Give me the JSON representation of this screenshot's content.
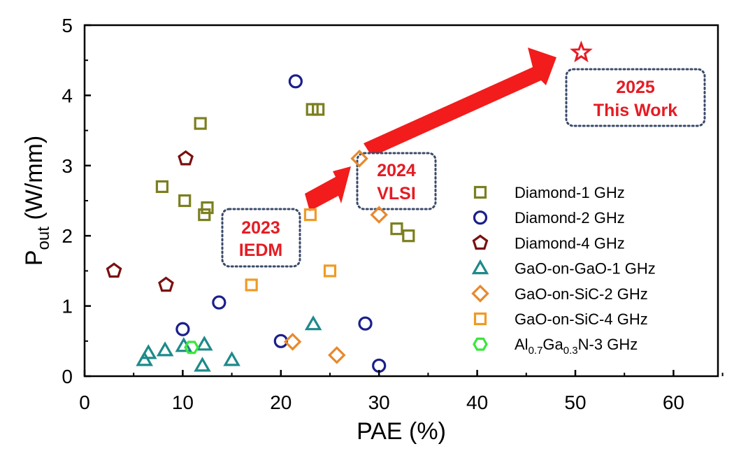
{
  "chart_data": {
    "type": "scatter",
    "xlabel": "PAE (%)",
    "ylabel_main": "P",
    "ylabel_sub": "out",
    "ylabel_rest": " (W/mm)",
    "xlim": [
      0,
      65
    ],
    "ylim": [
      0,
      5
    ],
    "xticks": [
      0,
      10,
      20,
      30,
      40,
      50,
      60
    ],
    "yticks": [
      0,
      1,
      2,
      3,
      4,
      5
    ],
    "grid": false,
    "legend_position": "right",
    "series": [
      {
        "name": "Diamond-1 GHz",
        "marker": "square",
        "color": "#7b7f1e",
        "points": [
          [
            7.9,
            2.7
          ],
          [
            10.2,
            2.5
          ],
          [
            11.8,
            3.6
          ],
          [
            12.2,
            2.3
          ],
          [
            12.5,
            2.4
          ],
          [
            23.2,
            3.8
          ],
          [
            23.8,
            3.8
          ],
          [
            31.8,
            2.1
          ],
          [
            33,
            2.0
          ]
        ]
      },
      {
        "name": "Diamond-2 GHz",
        "marker": "circle",
        "color": "#1a1f8c",
        "points": [
          [
            21.5,
            4.2
          ],
          [
            13.7,
            1.05
          ],
          [
            10,
            0.67
          ],
          [
            20,
            0.5
          ],
          [
            28.6,
            0.75
          ],
          [
            30,
            0.15
          ]
        ]
      },
      {
        "name": "Diamond-4 GHz",
        "marker": "pentagon",
        "color": "#7a1010",
        "points": [
          [
            3,
            1.5
          ],
          [
            10.3,
            3.1
          ],
          [
            8.3,
            1.3
          ]
        ]
      },
      {
        "name": "GaO-on-GaO-1 GHz",
        "marker": "triangle",
        "color": "#1d8a8a",
        "points": [
          [
            6.1,
            0.23
          ],
          [
            6.5,
            0.33
          ],
          [
            8.2,
            0.37
          ],
          [
            10.1,
            0.43
          ],
          [
            12.2,
            0.45
          ],
          [
            12,
            0.15
          ],
          [
            15,
            0.23
          ],
          [
            23.3,
            0.74
          ]
        ]
      },
      {
        "name": "GaO-on-SiC-2 GHz",
        "marker": "diamond",
        "color": "#e8892b",
        "points": [
          [
            28,
            3.1
          ],
          [
            30,
            2.3
          ],
          [
            21.2,
            0.49
          ],
          [
            25.7,
            0.3
          ]
        ]
      },
      {
        "name": "GaO-on-SiC-4 GHz",
        "marker": "square",
        "color": "#f09a24",
        "points": [
          [
            23,
            2.3
          ],
          [
            25,
            1.5
          ],
          [
            17,
            1.3
          ]
        ]
      },
      {
        "name_main": "Al",
        "name_sub1": "0.7",
        "name_mid": "Ga",
        "name_sub2": "0.3",
        "name_rest": "N-3 GHz",
        "marker": "hexagon",
        "color": "#39e63c",
        "points": [
          [
            10.9,
            0.41
          ]
        ]
      }
    ],
    "star": {
      "x": 50.6,
      "y": 4.61,
      "color": "#e51c23"
    },
    "annotations": [
      {
        "lines": [
          "2023",
          "IEDM"
        ],
        "color": "#e51c23",
        "border": "#3a4a6b"
      },
      {
        "lines": [
          "2024",
          "VLSI"
        ],
        "color": "#e51c23",
        "border": "#3a4a6b"
      },
      {
        "lines": [
          "2025",
          "This Work"
        ],
        "color": "#e51c23",
        "border": "#3a4a6b"
      }
    ],
    "arrow_color": "#f21c1c"
  }
}
